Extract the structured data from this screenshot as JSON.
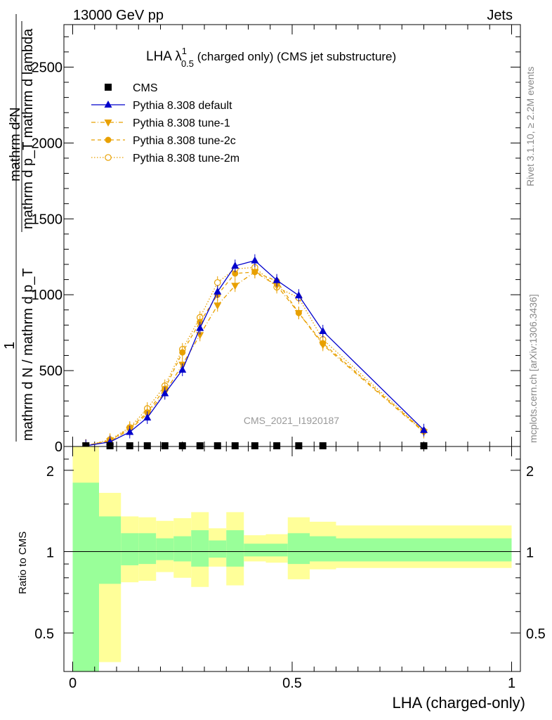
{
  "header": {
    "left": "13000 GeV pp",
    "right": "Jets"
  },
  "side_labels": {
    "rivet": "Rivet 3.1.10, ≥ 2.2M events",
    "mcplots": "mcplots.cern.ch [arXiv:1306.3436]"
  },
  "main_plot": {
    "title_parts": {
      "pre": "LHA λ",
      "sup": "1",
      "sub": "0.5",
      "post": " (charged only) (CMS jet substructure)"
    },
    "ylabel_numerator": "1",
    "ylabel_top": "mathrm d²N",
    "ylabel_top2": "mathrm d p_T mathrm d lambda",
    "ylabel_bottom": "mathrm d N / mathrm d p_T",
    "watermark": "CMS_2021_I1920187",
    "yticks": [
      "0",
      "500",
      "1000",
      "1500",
      "2000",
      "2500"
    ]
  },
  "ratio_plot": {
    "ylabel": "Ratio to CMS",
    "yticks": [
      "0.5",
      "1",
      "2"
    ],
    "xticks": [
      "0",
      "0.5",
      "1"
    ],
    "xlabel": "LHA (charged-only)"
  },
  "colors": {
    "default": "#0000cc",
    "tunes": "#e8a000",
    "band_inner": "#99ff99",
    "band_outer": "#ffff99"
  },
  "chart_data": {
    "type": "line",
    "x": [
      0.03,
      0.085,
      0.13,
      0.17,
      0.21,
      0.25,
      0.29,
      0.33,
      0.37,
      0.415,
      0.465,
      0.515,
      0.57,
      0.8
    ],
    "bin_edges": [
      0,
      0.06,
      0.11,
      0.15,
      0.19,
      0.23,
      0.27,
      0.31,
      0.35,
      0.39,
      0.44,
      0.49,
      0.54,
      0.6,
      1.0
    ],
    "xlim": [
      -0.02,
      1.02
    ],
    "ylim": [
      0,
      2780
    ],
    "ratio_ylim": [
      0.36,
      2.45
    ],
    "series": [
      {
        "name": "CMS",
        "marker": "square",
        "values": [
          0,
          0,
          0,
          0,
          0,
          0,
          0,
          0,
          0,
          0,
          0,
          0,
          0,
          0
        ]
      },
      {
        "name": "Pythia 8.308 default",
        "marker": "triangle-up",
        "line": "solid",
        "values": [
          5,
          30,
          95,
          190,
          350,
          505,
          780,
          1020,
          1190,
          1225,
          1095,
          995,
          760,
          108
        ]
      },
      {
        "name": "Pythia 8.308 tune-1",
        "marker": "triangle-down",
        "line": "dashdot",
        "values": [
          5,
          35,
          110,
          215,
          355,
          540,
          735,
          930,
          1060,
          1150,
          1060,
          880,
          670,
          95
        ]
      },
      {
        "name": "Pythia 8.308 tune-2c",
        "marker": "circle-filled",
        "line": "dashed",
        "values": [
          6,
          40,
          120,
          225,
          380,
          620,
          820,
          1000,
          1140,
          1150,
          1090,
          880,
          680,
          100
        ]
      },
      {
        "name": "Pythia 8.308 tune-2m",
        "marker": "circle-open",
        "line": "dotted",
        "values": [
          6,
          45,
          125,
          250,
          400,
          640,
          850,
          1080,
          1170,
          1180,
          1050,
          980,
          705,
          102
        ]
      }
    ],
    "ratio_bands": {
      "inner_upper": [
        1.8,
        1.35,
        1.17,
        1.17,
        1.12,
        1.14,
        1.2,
        1.1,
        1.2,
        1.07,
        1.07,
        1.17,
        1.14,
        1.12
      ],
      "inner_lower": [
        0.36,
        0.76,
        0.89,
        0.9,
        0.93,
        0.92,
        0.88,
        0.95,
        0.88,
        0.96,
        0.96,
        0.9,
        0.92,
        0.92
      ],
      "outer_upper": [
        2.45,
        1.65,
        1.35,
        1.34,
        1.3,
        1.33,
        1.4,
        1.22,
        1.4,
        1.15,
        1.16,
        1.34,
        1.29,
        1.25
      ],
      "outer_lower": [
        0.36,
        0.39,
        0.77,
        0.78,
        0.84,
        0.8,
        0.74,
        0.88,
        0.75,
        0.92,
        0.91,
        0.79,
        0.86,
        0.87
      ]
    }
  }
}
